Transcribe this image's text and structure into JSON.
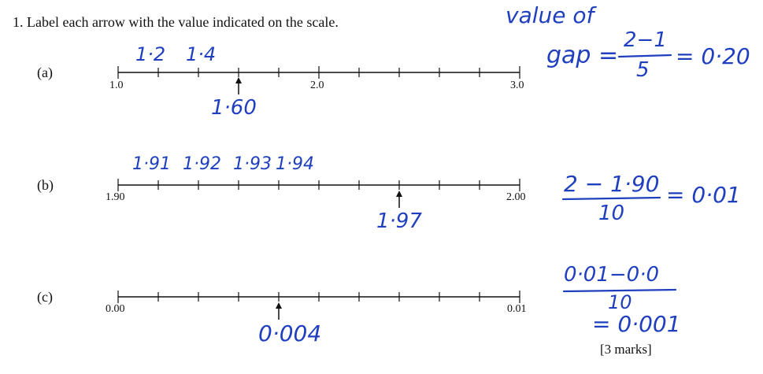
{
  "question": {
    "text": "1. Label each arrow with the value indicated on the scale."
  },
  "parts": [
    {
      "label": "(a)",
      "ticks_printed": [
        "1.0",
        "2.0",
        "3.0"
      ],
      "handwritten_labels": [
        "1·2",
        "1·4"
      ],
      "arrow_answer": "1·60",
      "working": {
        "line1": "value of",
        "prefix": "gap =",
        "numerator": "2−1",
        "denominator": "5",
        "result": "= 0·20"
      }
    },
    {
      "label": "(b)",
      "ticks_printed": [
        "1.90",
        "2.00"
      ],
      "handwritten_labels": [
        "1·91",
        "1·92",
        "1·93",
        "1·94"
      ],
      "arrow_answer": "1·97",
      "working": {
        "numerator": "2 − 1·90",
        "denominator": "10",
        "result": "= 0·01"
      }
    },
    {
      "label": "(c)",
      "ticks_printed": [
        "0.00",
        "0.01"
      ],
      "arrow_answer": "0·004",
      "working": {
        "numerator": "0·01−0·0",
        "denominator": "10",
        "result": "= 0·001"
      }
    }
  ],
  "marks": "[3 marks]",
  "colors": {
    "ink": "#111111",
    "pen": "#1f3fbf"
  }
}
